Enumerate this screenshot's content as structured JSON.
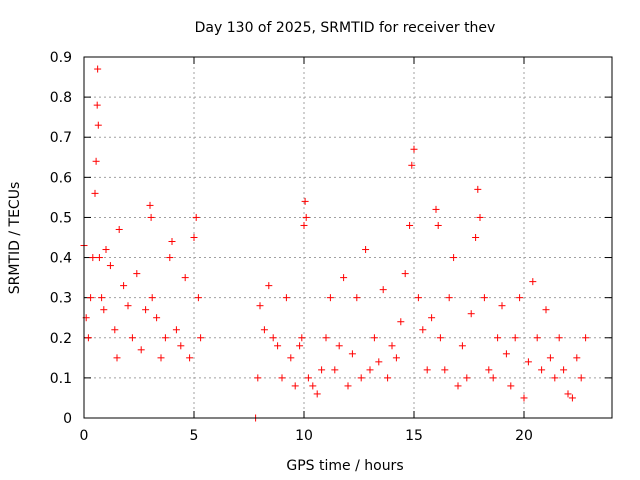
{
  "chart_data": {
    "type": "scatter",
    "title": "Day 130 of 2025, SRMTID for receiver thev",
    "xlabel": "GPS time / hours",
    "ylabel": "SRMTID / TECUs",
    "xlim": [
      0,
      24
    ],
    "ylim": [
      0,
      0.9
    ],
    "x_ticks": [
      0,
      5,
      10,
      15,
      20
    ],
    "x_tick_labels": [
      "0",
      "5",
      "10",
      "15",
      "20"
    ],
    "y_ticks": [
      0,
      0.1,
      0.2,
      0.3,
      0.4,
      0.5,
      0.6,
      0.7,
      0.8,
      0.9
    ],
    "y_tick_labels": [
      "0",
      "0.1",
      "0.2",
      "0.3",
      "0.4",
      "0.5",
      "0.6",
      "0.7",
      "0.8",
      "0.9"
    ],
    "grid": true,
    "marker": "+",
    "color": "#ff0000",
    "series": [
      {
        "name": "SRMTID",
        "x": [
          0.0,
          0.1,
          0.2,
          0.3,
          0.4,
          0.5,
          0.55,
          0.6,
          0.62,
          0.65,
          0.7,
          0.8,
          0.9,
          1.0,
          1.2,
          1.4,
          1.5,
          1.6,
          1.8,
          2.0,
          2.2,
          2.4,
          2.6,
          2.8,
          3.0,
          3.05,
          3.1,
          3.3,
          3.5,
          3.7,
          3.9,
          4.0,
          4.2,
          4.4,
          4.6,
          4.8,
          5.0,
          5.1,
          5.2,
          5.3,
          7.8,
          7.9,
          8.0,
          8.2,
          8.4,
          8.6,
          8.8,
          9.0,
          9.2,
          9.4,
          9.6,
          9.8,
          9.9,
          10.0,
          10.05,
          10.1,
          10.2,
          10.4,
          10.6,
          10.8,
          11.0,
          11.2,
          11.4,
          11.6,
          11.8,
          12.0,
          12.2,
          12.4,
          12.6,
          12.8,
          13.0,
          13.2,
          13.4,
          13.6,
          13.8,
          14.0,
          14.2,
          14.4,
          14.6,
          14.8,
          14.9,
          15.0,
          15.2,
          15.4,
          15.6,
          15.8,
          16.0,
          16.1,
          16.2,
          16.4,
          16.6,
          16.8,
          17.0,
          17.2,
          17.4,
          17.6,
          17.8,
          17.9,
          18.0,
          18.2,
          18.4,
          18.6,
          18.8,
          19.0,
          19.2,
          19.4,
          19.6,
          19.8,
          20.0,
          20.2,
          20.4,
          20.6,
          20.8,
          21.0,
          21.2,
          21.4,
          21.6,
          21.8,
          22.0,
          22.2,
          22.4,
          22.6,
          22.8
        ],
        "y": [
          0.43,
          0.25,
          0.2,
          0.3,
          0.4,
          0.56,
          0.64,
          0.78,
          0.87,
          0.73,
          0.4,
          0.3,
          0.27,
          0.42,
          0.38,
          0.22,
          0.15,
          0.47,
          0.33,
          0.28,
          0.2,
          0.36,
          0.17,
          0.27,
          0.53,
          0.5,
          0.3,
          0.25,
          0.15,
          0.2,
          0.4,
          0.44,
          0.22,
          0.18,
          0.35,
          0.15,
          0.45,
          0.5,
          0.3,
          0.2,
          0.0,
          0.1,
          0.28,
          0.22,
          0.33,
          0.2,
          0.18,
          0.1,
          0.3,
          0.15,
          0.08,
          0.18,
          0.2,
          0.48,
          0.54,
          0.5,
          0.1,
          0.08,
          0.06,
          0.12,
          0.2,
          0.3,
          0.12,
          0.18,
          0.35,
          0.08,
          0.16,
          0.3,
          0.1,
          0.42,
          0.12,
          0.2,
          0.14,
          0.32,
          0.1,
          0.18,
          0.15,
          0.24,
          0.36,
          0.48,
          0.63,
          0.67,
          0.3,
          0.22,
          0.12,
          0.25,
          0.52,
          0.48,
          0.2,
          0.12,
          0.3,
          0.4,
          0.08,
          0.18,
          0.1,
          0.26,
          0.45,
          0.57,
          0.5,
          0.3,
          0.12,
          0.1,
          0.2,
          0.28,
          0.16,
          0.08,
          0.2,
          0.3,
          0.05,
          0.14,
          0.34,
          0.2,
          0.12,
          0.27,
          0.15,
          0.1,
          0.2,
          0.12,
          0.06,
          0.05,
          0.15,
          0.1,
          0.2
        ]
      }
    ]
  }
}
